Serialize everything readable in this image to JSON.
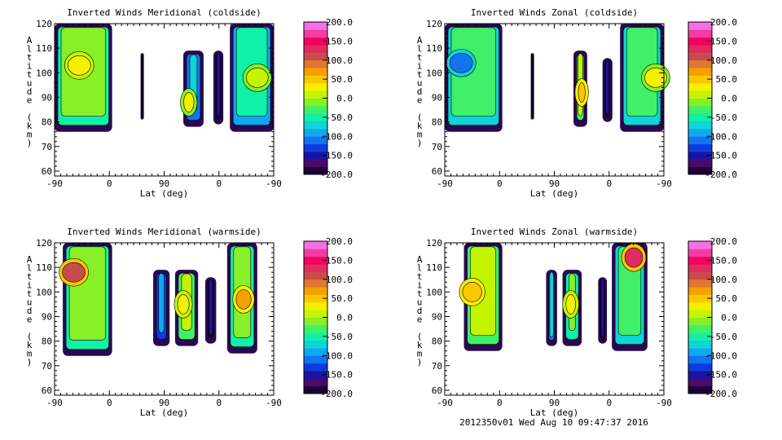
{
  "footer": "2012350v01 Wed Aug 10 09:47:37 2016",
  "colorbar": {
    "ticks": [
      "200.0",
      "150.0",
      "100.0",
      "50.0",
      "0.0",
      "-50.0",
      "-100.0",
      "-150.0",
      "-200.0"
    ],
    "range": [
      -200,
      200
    ],
    "colors": [
      "#1e0034",
      "#4a0a6c",
      "#1c14a0",
      "#0c3ce0",
      "#1474f0",
      "#10a8f0",
      "#10d4d8",
      "#10f0a8",
      "#40f068",
      "#88f028",
      "#c4f400",
      "#f4f000",
      "#f8c800",
      "#f8a000",
      "#e07830",
      "#c84c4c",
      "#e02c5c",
      "#f40060",
      "#f43ca4",
      "#f470e4"
    ]
  },
  "chart_data": [
    {
      "type": "heatmap",
      "title": "Inverted Winds Meridional (coldside)",
      "xlabel": "Lat (deg)",
      "ylabel": "Altitude (km)",
      "xticks": [
        "-90",
        "0",
        "90",
        "0",
        "-90"
      ],
      "yticks": [
        "60",
        "70",
        "80",
        "90",
        "100",
        "110",
        "120"
      ],
      "ylim": [
        58,
        120
      ],
      "regions": [
        {
          "track": [
            0,
            1.05
          ],
          "alt": [
            76,
            120
          ],
          "value": -20,
          "core": {
            "track": 0.45,
            "alt": 103,
            "value": 30
          }
        },
        {
          "track": [
            1.57,
            1.63
          ],
          "alt": [
            81,
            108
          ],
          "value": -200
        },
        {
          "track": [
            2.35,
            2.72
          ],
          "alt": [
            78,
            109
          ],
          "value": -70,
          "core": {
            "track": 2.45,
            "alt": 88,
            "value": 30
          }
        },
        {
          "track": [
            2.9,
            3.08
          ],
          "alt": [
            79,
            109
          ],
          "value": -150
        },
        {
          "track": [
            3.2,
            4.0
          ],
          "alt": [
            76,
            120
          ],
          "value": -50,
          "core": {
            "track": 3.7,
            "alt": 98,
            "value": 10
          }
        }
      ]
    },
    {
      "type": "heatmap",
      "title": "Inverted Winds Zonal (coldside)",
      "xlabel": "Lat (deg)",
      "ylabel": "Altitude (km)",
      "xticks": [
        "-90",
        "0",
        "90",
        "0",
        "-90"
      ],
      "yticks": [
        "60",
        "70",
        "80",
        "90",
        "100",
        "110",
        "120"
      ],
      "ylim": [
        58,
        120
      ],
      "regions": [
        {
          "track": [
            0,
            1.05
          ],
          "alt": [
            76,
            120
          ],
          "value": -30,
          "core": {
            "track": 0.3,
            "alt": 104,
            "value": -120
          }
        },
        {
          "track": [
            1.57,
            1.63
          ],
          "alt": [
            81,
            108
          ],
          "value": -200
        },
        {
          "track": [
            2.35,
            2.6
          ],
          "alt": [
            78,
            109
          ],
          "value": 10,
          "core": {
            "track": 2.5,
            "alt": 92,
            "value": 40
          }
        },
        {
          "track": [
            2.88,
            3.06
          ],
          "alt": [
            80,
            106
          ],
          "value": -150
        },
        {
          "track": [
            3.2,
            4.0
          ],
          "alt": [
            76,
            120
          ],
          "value": -40,
          "core": {
            "track": 3.85,
            "alt": 98,
            "value": 30
          }
        }
      ]
    },
    {
      "type": "heatmap",
      "title": "Inverted Winds Meridional (warmside)",
      "xlabel": "Lat (deg)",
      "ylabel": "Altitude (km)",
      "xticks": [
        "-90",
        "0",
        "90",
        "0",
        "-90"
      ],
      "yticks": [
        "60",
        "70",
        "80",
        "90",
        "100",
        "110",
        "120"
      ],
      "ylim": [
        58,
        120
      ],
      "regions": [
        {
          "track": [
            0.15,
            1.05
          ],
          "alt": [
            74,
            120
          ],
          "value": -10,
          "core": {
            "track": 0.35,
            "alt": 108,
            "value": 110
          }
        },
        {
          "track": [
            1.8,
            2.1
          ],
          "alt": [
            78,
            109
          ],
          "value": -90
        },
        {
          "track": [
            2.2,
            2.62
          ],
          "alt": [
            78,
            109
          ],
          "value": 0,
          "core": {
            "track": 2.35,
            "alt": 95,
            "value": 20
          }
        },
        {
          "track": [
            2.75,
            2.95
          ],
          "alt": [
            79,
            106
          ],
          "value": -150
        },
        {
          "track": [
            3.15,
            3.7
          ],
          "alt": [
            75,
            120
          ],
          "value": -20,
          "core": {
            "track": 3.45,
            "alt": 97,
            "value": 70
          }
        }
      ]
    },
    {
      "type": "heatmap",
      "title": "Inverted Winds Zonal (warmside)",
      "xlabel": "Lat (deg)",
      "ylabel": "Altitude (km)",
      "xticks": [
        "-90",
        "0",
        "90",
        "0",
        "-90"
      ],
      "yticks": [
        "60",
        "70",
        "80",
        "90",
        "100",
        "110",
        "120"
      ],
      "ylim": [
        58,
        120
      ],
      "regions": [
        {
          "track": [
            0.35,
            1.05
          ],
          "alt": [
            76,
            120
          ],
          "value": 0,
          "core": {
            "track": 0.5,
            "alt": 100,
            "value": 40
          }
        },
        {
          "track": [
            1.85,
            2.05
          ],
          "alt": [
            78,
            109
          ],
          "value": -70
        },
        {
          "track": [
            2.15,
            2.5
          ],
          "alt": [
            78,
            109
          ],
          "value": -10,
          "core": {
            "track": 2.3,
            "alt": 95,
            "value": 20
          }
        },
        {
          "track": [
            2.8,
            2.96
          ],
          "alt": [
            79,
            106
          ],
          "value": -150
        },
        {
          "track": [
            3.05,
            3.7
          ],
          "alt": [
            76,
            120
          ],
          "value": -40,
          "core": {
            "track": 3.45,
            "alt": 114,
            "value": 130
          }
        }
      ]
    }
  ]
}
